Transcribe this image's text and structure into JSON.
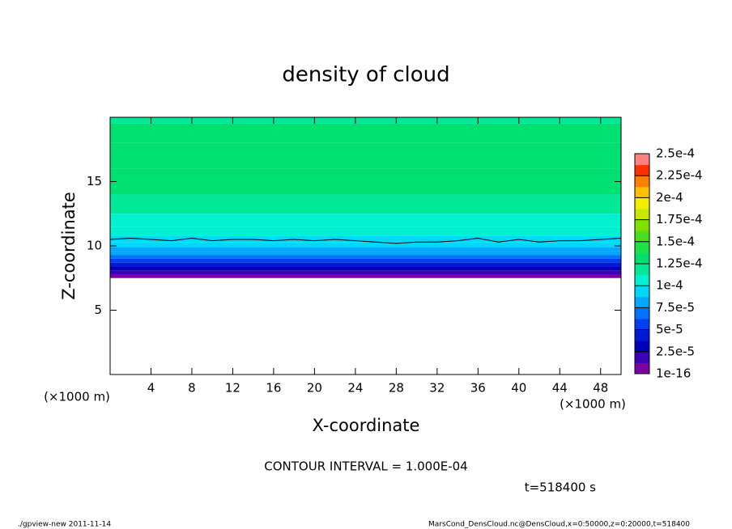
{
  "chart_data": {
    "type": "contour",
    "title": "density of cloud",
    "xlabel": "X-coordinate",
    "ylabel": "Z-coordinate",
    "xunits": "(×1000 m)",
    "yunits": "(×1000 m)",
    "xlim": [
      0,
      50
    ],
    "ylim": [
      0,
      20
    ],
    "xticks": [
      4,
      8,
      12,
      16,
      20,
      24,
      28,
      32,
      36,
      40,
      44,
      48
    ],
    "yticks": [
      5,
      10,
      15
    ],
    "z": [
      7.5,
      7.8,
      8.1,
      8.4,
      8.7,
      9.0,
      9.3,
      9.6,
      9.9,
      10.3,
      10.8,
      11.5,
      12.5,
      14,
      16,
      18,
      19.5
    ],
    "values": [
      1e-05,
      2e-05,
      3e-05,
      4.5e-05,
      5.5e-05,
      6.5e-05,
      7.5e-05,
      8.5e-05,
      9.3e-05,
      9.8e-05,
      0.000105,
      0.00011,
      0.000118,
      0.000126,
      0.000132,
      0.000127,
      0.000122
    ],
    "contour_line": {
      "level": 0.0001,
      "x": [
        0,
        2,
        4,
        6,
        8,
        10,
        12,
        14,
        16,
        18,
        20,
        22,
        24,
        26,
        28,
        30,
        32,
        34,
        36,
        38,
        40,
        42,
        44,
        46,
        48,
        50
      ],
      "z": [
        10.5,
        10.6,
        10.5,
        10.4,
        10.6,
        10.4,
        10.5,
        10.5,
        10.4,
        10.5,
        10.4,
        10.5,
        10.4,
        10.3,
        10.2,
        10.3,
        10.3,
        10.4,
        10.6,
        10.3,
        10.5,
        10.3,
        10.4,
        10.4,
        10.5,
        10.6
      ]
    },
    "colorbar": {
      "levels": [
        {
          "value": 1e-16,
          "label": "1e-16"
        },
        {
          "value": 2.5e-05,
          "label": "2.5e-5"
        },
        {
          "value": 5e-05,
          "label": "5e-5"
        },
        {
          "value": 7.5e-05,
          "label": "7.5e-5"
        },
        {
          "value": 0.0001,
          "label": "1e-4"
        },
        {
          "value": 0.000125,
          "label": "1.25e-4"
        },
        {
          "value": 0.00015,
          "label": "1.5e-4"
        },
        {
          "value": 0.000175,
          "label": "1.75e-4"
        },
        {
          "value": 0.0002,
          "label": "2e-4"
        },
        {
          "value": 0.000225,
          "label": "2.25e-4"
        },
        {
          "value": 0.00025,
          "label": "2.5e-4"
        }
      ],
      "colors": [
        "#7a00a8",
        "#3c00b8",
        "#0000b8",
        "#0018d8",
        "#0040f0",
        "#0070ff",
        "#00a8ff",
        "#00d8f8",
        "#00f0d0",
        "#00e898",
        "#00e070",
        "#20e048",
        "#48e020",
        "#80e000",
        "#c8e800",
        "#f0f000",
        "#ffc000",
        "#ff8000",
        "#ff3000",
        "#ff8080"
      ]
    },
    "annotation": "CONTOUR INTERVAL = 1.000E-04",
    "time_label": "t=518400 s",
    "footer_left": "./gpview-new   2011-11-14",
    "footer_right": "MarsCond_DensCloud.nc@DensCloud,x=0:50000,z=0:20000,t=518400"
  }
}
